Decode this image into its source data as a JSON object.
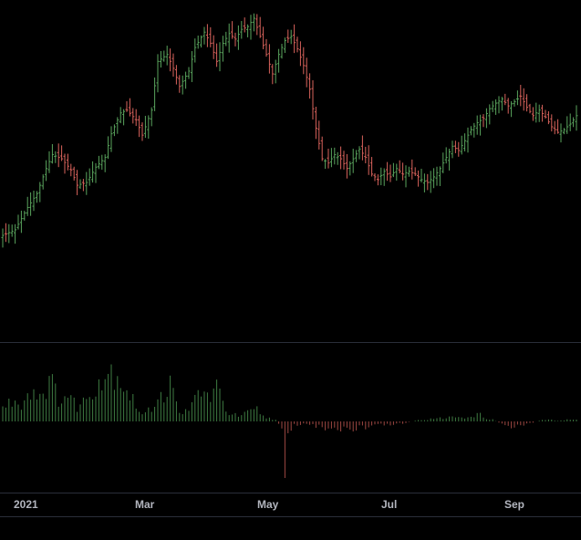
{
  "chart_data": {
    "type": "ohlc-with-histogram",
    "x_axis": {
      "tick_labels": [
        "2021",
        "Mar",
        "May",
        "Jul",
        "Sep"
      ]
    },
    "colors": {
      "background": "#000000",
      "up": "#5aa45d",
      "down": "#d9635c",
      "up_hist": "#3f7d43",
      "down_hist": "#9e4843",
      "text": "#b2b5be",
      "separator": "#2a2e39"
    },
    "price_anchors": [
      [
        0,
        40
      ],
      [
        4,
        44
      ],
      [
        8,
        60
      ],
      [
        11,
        70
      ],
      [
        14,
        88
      ],
      [
        16,
        98
      ],
      [
        19,
        95
      ],
      [
        22,
        87
      ],
      [
        24,
        76
      ],
      [
        27,
        78
      ],
      [
        30,
        89
      ],
      [
        33,
        96
      ],
      [
        35,
        113
      ],
      [
        38,
        128
      ],
      [
        40,
        130
      ],
      [
        43,
        123
      ],
      [
        45,
        112
      ],
      [
        48,
        130
      ],
      [
        50,
        165
      ],
      [
        53,
        170
      ],
      [
        55,
        160
      ],
      [
        57,
        147
      ],
      [
        60,
        158
      ],
      [
        62,
        175
      ],
      [
        65,
        186
      ],
      [
        67,
        178
      ],
      [
        69,
        165
      ],
      [
        71,
        178
      ],
      [
        73,
        185
      ],
      [
        75,
        181
      ],
      [
        77,
        188
      ],
      [
        79,
        190
      ],
      [
        81,
        196
      ],
      [
        83,
        183
      ],
      [
        85,
        170
      ],
      [
        87,
        156
      ],
      [
        89,
        170
      ],
      [
        91,
        180
      ],
      [
        93,
        183
      ],
      [
        95,
        174
      ],
      [
        97,
        162
      ],
      [
        99,
        145
      ],
      [
        101,
        117
      ],
      [
        103,
        95
      ],
      [
        105,
        92
      ],
      [
        107,
        98
      ],
      [
        109,
        95
      ],
      [
        111,
        88
      ],
      [
        113,
        95
      ],
      [
        115,
        102
      ],
      [
        117,
        96
      ],
      [
        119,
        84
      ],
      [
        121,
        80
      ],
      [
        123,
        86
      ],
      [
        125,
        82
      ],
      [
        127,
        88
      ],
      [
        129,
        84
      ],
      [
        131,
        86
      ],
      [
        133,
        84
      ],
      [
        135,
        80
      ],
      [
        137,
        78
      ],
      [
        139,
        82
      ],
      [
        141,
        88
      ],
      [
        143,
        96
      ],
      [
        145,
        104
      ],
      [
        147,
        101
      ],
      [
        149,
        108
      ],
      [
        151,
        116
      ],
      [
        153,
        121
      ],
      [
        155,
        124
      ],
      [
        157,
        131
      ],
      [
        159,
        135
      ],
      [
        161,
        138
      ],
      [
        163,
        133
      ],
      [
        165,
        136
      ],
      [
        167,
        140
      ],
      [
        169,
        132
      ],
      [
        171,
        126
      ],
      [
        173,
        130
      ],
      [
        175,
        125
      ],
      [
        177,
        118
      ],
      [
        179,
        114
      ],
      [
        181,
        116
      ],
      [
        183,
        120
      ],
      [
        185,
        126
      ]
    ],
    "histogram_anchors": [
      [
        0,
        16
      ],
      [
        3,
        24
      ],
      [
        6,
        22
      ],
      [
        9,
        38
      ],
      [
        12,
        32
      ],
      [
        15,
        48
      ],
      [
        18,
        28
      ],
      [
        21,
        30
      ],
      [
        24,
        18
      ],
      [
        27,
        26
      ],
      [
        30,
        48
      ],
      [
        33,
        55
      ],
      [
        36,
        62
      ],
      [
        39,
        45
      ],
      [
        42,
        25
      ],
      [
        45,
        8
      ],
      [
        48,
        14
      ],
      [
        50,
        36
      ],
      [
        52,
        30
      ],
      [
        54,
        44
      ],
      [
        56,
        20
      ],
      [
        58,
        12
      ],
      [
        60,
        10
      ],
      [
        63,
        36
      ],
      [
        66,
        30
      ],
      [
        69,
        38
      ],
      [
        71,
        22
      ],
      [
        73,
        10
      ],
      [
        76,
        6
      ],
      [
        79,
        10
      ],
      [
        82,
        14
      ],
      [
        84,
        6
      ],
      [
        86,
        4
      ],
      [
        88,
        2
      ],
      [
        90,
        -6
      ],
      [
        91,
        -62
      ],
      [
        92,
        -12
      ],
      [
        94,
        -5
      ],
      [
        97,
        -3
      ],
      [
        100,
        -4
      ],
      [
        103,
        -7
      ],
      [
        106,
        -10
      ],
      [
        109,
        -12
      ],
      [
        112,
        -9
      ],
      [
        115,
        -8
      ],
      [
        118,
        -7
      ],
      [
        121,
        -5
      ],
      [
        124,
        -4
      ],
      [
        127,
        -3
      ],
      [
        130,
        -2
      ],
      [
        133,
        1
      ],
      [
        136,
        2
      ],
      [
        139,
        3
      ],
      [
        142,
        4
      ],
      [
        145,
        5
      ],
      [
        148,
        6
      ],
      [
        151,
        4
      ],
      [
        153,
        10
      ],
      [
        155,
        5
      ],
      [
        158,
        2
      ],
      [
        161,
        -3
      ],
      [
        164,
        -6
      ],
      [
        167,
        -4
      ],
      [
        170,
        -2
      ],
      [
        173,
        1
      ],
      [
        176,
        2
      ],
      [
        179,
        1
      ],
      [
        182,
        2
      ],
      [
        185,
        2
      ]
    ]
  }
}
